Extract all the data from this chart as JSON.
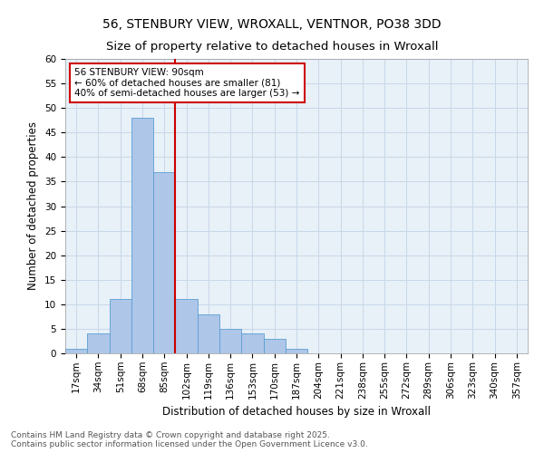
{
  "title_line1": "56, STENBURY VIEW, WROXALL, VENTNOR, PO38 3DD",
  "title_line2": "Size of property relative to detached houses in Wroxall",
  "xlabel": "Distribution of detached houses by size in Wroxall",
  "ylabel": "Number of detached properties",
  "bar_values": [
    1,
    4,
    11,
    48,
    37,
    11,
    8,
    5,
    4,
    3,
    1,
    0,
    0,
    0,
    0,
    0,
    0,
    0,
    0,
    0,
    0
  ],
  "categories": [
    "17sqm",
    "34sqm",
    "51sqm",
    "68sqm",
    "85sqm",
    "102sqm",
    "119sqm",
    "136sqm",
    "153sqm",
    "170sqm",
    "187sqm",
    "204sqm",
    "221sqm",
    "238sqm",
    "255sqm",
    "272sqm",
    "289sqm",
    "306sqm",
    "323sqm",
    "340sqm",
    "357sqm"
  ],
  "bar_color": "#aec6e8",
  "bar_edge_color": "#5a9fd4",
  "property_line_x": 4.5,
  "annotation_text": "56 STENBURY VIEW: 90sqm\n← 60% of detached houses are smaller (81)\n40% of semi-detached houses are larger (53) →",
  "annotation_box_color": "#ffffff",
  "annotation_box_edge_color": "#cc0000",
  "vline_color": "#cc0000",
  "ylim": [
    0,
    60
  ],
  "yticks": [
    0,
    5,
    10,
    15,
    20,
    25,
    30,
    35,
    40,
    45,
    50,
    55,
    60
  ],
  "grid_color": "#c8d8e8",
  "footer_text": "Contains HM Land Registry data © Crown copyright and database right 2025.\nContains public sector information licensed under the Open Government Licence v3.0.",
  "title_fontsize": 10,
  "axis_label_fontsize": 8.5,
  "tick_fontsize": 7.5,
  "annotation_fontsize": 7.5,
  "footer_fontsize": 6.5,
  "bg_color": "#e8f0f8"
}
